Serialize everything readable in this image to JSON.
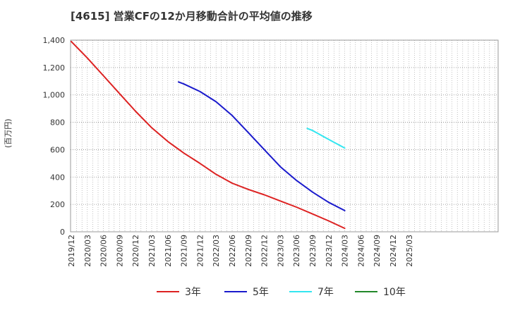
{
  "title": "[4615]  営業CFの12か月移動合計の平均値の推移",
  "chart_data": {
    "type": "line",
    "title": "[4615]  営業CFの12か月移動合計の平均値の推移",
    "ylabel": "(百万円)",
    "xlabel": "",
    "ylim": [
      0,
      1400
    ],
    "yticks": [
      "0",
      "200",
      "400",
      "600",
      "800",
      "1,000",
      "1,200",
      "1,400"
    ],
    "ytick_values": [
      0,
      200,
      400,
      600,
      800,
      1000,
      1200,
      1400
    ],
    "xticks": [
      "2019/12",
      "2020/03",
      "2020/06",
      "2020/09",
      "2020/12",
      "2021/03",
      "2021/06",
      "2021/09",
      "2021/12",
      "2022/03",
      "2022/06",
      "2022/09",
      "2022/12",
      "2023/03",
      "2023/06",
      "2023/09",
      "2023/12",
      "2024/03",
      "2024/06",
      "2024/09",
      "2024/12",
      "2025/03"
    ],
    "grid": true,
    "legend_position": "bottom",
    "series": [
      {
        "name": "3年",
        "color": "#dd2222",
        "points": [
          [
            "2019/12",
            1390
          ],
          [
            "2020/03",
            1270
          ],
          [
            "2020/06",
            1140
          ],
          [
            "2020/09",
            1010
          ],
          [
            "2020/12",
            880
          ],
          [
            "2021/03",
            760
          ],
          [
            "2021/06",
            660
          ],
          [
            "2021/09",
            575
          ],
          [
            "2021/12",
            500
          ],
          [
            "2022/03",
            420
          ],
          [
            "2022/06",
            355
          ],
          [
            "2022/09",
            310
          ],
          [
            "2022/12",
            270
          ],
          [
            "2023/03",
            225
          ],
          [
            "2023/06",
            180
          ],
          [
            "2023/09",
            130
          ],
          [
            "2023/12",
            80
          ],
          [
            "2024/03",
            25
          ]
        ]
      },
      {
        "name": "5年",
        "color": "#1a1acc",
        "points": [
          [
            "2021/08",
            1095
          ],
          [
            "2021/09",
            1080
          ],
          [
            "2021/12",
            1025
          ],
          [
            "2022/03",
            950
          ],
          [
            "2022/06",
            850
          ],
          [
            "2022/09",
            725
          ],
          [
            "2022/12",
            600
          ],
          [
            "2023/03",
            475
          ],
          [
            "2023/06",
            375
          ],
          [
            "2023/09",
            290
          ],
          [
            "2023/12",
            215
          ],
          [
            "2024/03",
            155
          ]
        ]
      },
      {
        "name": "7年",
        "color": "#33e6f0",
        "points": [
          [
            "2023/08",
            755
          ],
          [
            "2023/09",
            740
          ],
          [
            "2023/12",
            675
          ],
          [
            "2024/03",
            612
          ]
        ]
      },
      {
        "name": "10年",
        "color": "#22882a",
        "points": []
      }
    ]
  }
}
